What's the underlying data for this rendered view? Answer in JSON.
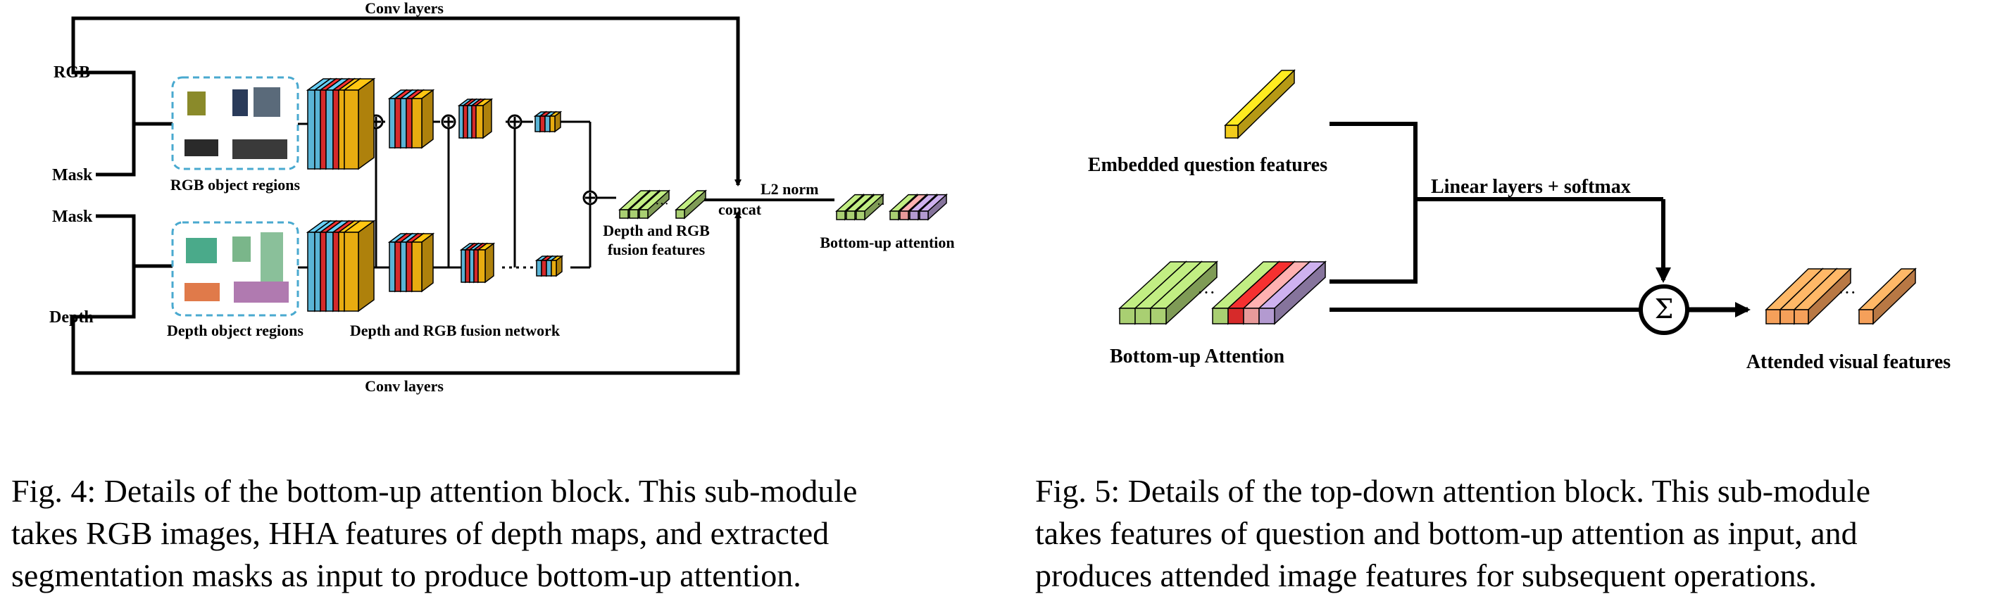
{
  "fig4": {
    "labels": {
      "conv_top": "Conv layers",
      "conv_bottom": "Conv layers",
      "rgb": "RGB",
      "mask_top": "Mask",
      "mask_bottom": "Mask",
      "depth": "Depth",
      "rgb_regions": "RGB object regions",
      "depth_regions": "Depth object regions",
      "fusion_network": "Depth and RGB fusion network",
      "fusion_features_1": "Depth and RGB",
      "fusion_features_2": "fusion features",
      "concat": "concat",
      "l2norm": "L2 norm",
      "bottom_up": "Bottom-up attention"
    },
    "caption_lines": [
      "Fig. 4: Details of the bottom-up attention block. This sub-module",
      "takes RGB images, HHA features of depth maps, and extracted",
      "segmentation masks as input to produce bottom-up attention."
    ]
  },
  "fig5": {
    "labels": {
      "question": "Embedded question features",
      "linear": "Linear layers + softmax",
      "bottom_up": "Bottom-up Attention",
      "attended": "Attended visual features",
      "sum_symbol": "Σ"
    },
    "caption_lines": [
      "Fig. 5: Details of the top-down attention block. This sub-module",
      "takes features of question and bottom-up attention as input, and",
      "produces attended image features for subsequent operations."
    ]
  },
  "colors": {
    "conv_blue": "#5ab4d6",
    "conv_red": "#d62a2a",
    "conv_gold": "#e8ac10",
    "green": "#a9cf72",
    "pink": "#e89a9a",
    "lavender": "#b39ad0",
    "orange": "#f5a05a",
    "yellow": "#f2cc1c",
    "dashed_box": "#49a9cf"
  }
}
